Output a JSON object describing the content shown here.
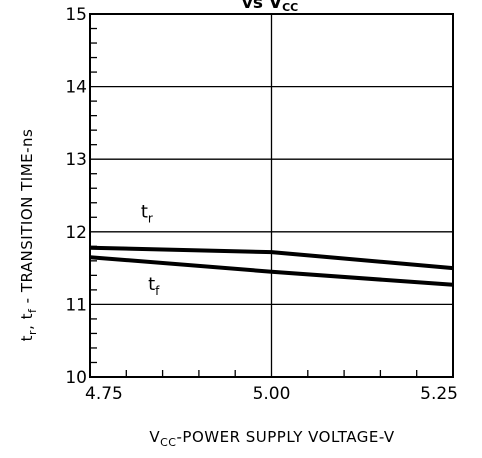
{
  "chart_data": {
    "type": "line",
    "title": "vs V",
    "title_subscript": "CC",
    "xlabel_prefix": "V",
    "xlabel_subscript": "CC",
    "xlabel_suffix": "-POWER SUPPLY VOLTAGE-V",
    "ylabel": {
      "t1": "t",
      "s1": "r",
      "t2": ", t",
      "s2": "f",
      "t3": " - TRANSITION TIME-ns"
    },
    "xlim": [
      4.75,
      5.25
    ],
    "ylim": [
      10,
      15
    ],
    "x_ticks": [
      "4.75",
      "5.00",
      "5.25"
    ],
    "y_ticks": [
      "10",
      "11",
      "12",
      "13",
      "14",
      "15"
    ],
    "grid": true,
    "series": [
      {
        "name": "t_r",
        "label_main": "t",
        "label_sub": "r",
        "x": [
          4.75,
          5.0,
          5.25
        ],
        "y": [
          11.78,
          11.72,
          11.5
        ],
        "label_at": [
          4.82,
          12.2
        ]
      },
      {
        "name": "t_f",
        "label_main": "t",
        "label_sub": "f",
        "x": [
          4.75,
          5.0,
          5.25
        ],
        "y": [
          11.65,
          11.45,
          11.27
        ],
        "label_at": [
          4.83,
          11.2
        ]
      }
    ]
  }
}
